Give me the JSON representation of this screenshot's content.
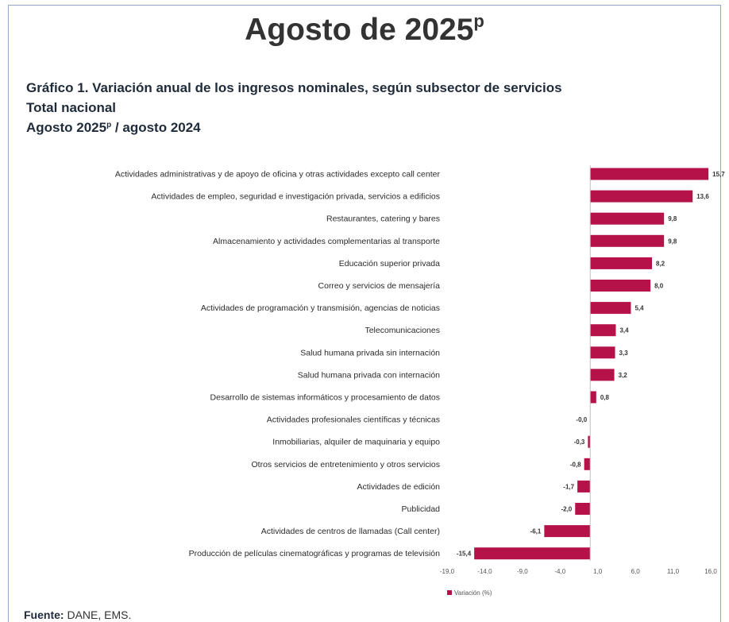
{
  "header": {
    "title": "Agosto de 2025",
    "title_sup": "p",
    "chart_title": "Gráfico 1. Variación anual de los ingresos nominales, según subsector de servicios",
    "scope": "Total nacional",
    "period_a": "Agosto 2025",
    "period_sup": "p",
    "period_b": " / agosto 2024"
  },
  "chart_data": {
    "type": "bar",
    "orientation": "horizontal",
    "categories": [
      "Actividades administrativas y de apoyo de oficina y otras actividades excepto call center",
      "Actividades de empleo, seguridad e investigación privada, servicios a edificios",
      "Restaurantes, catering y bares",
      "Almacenamiento y actividades complementarias al transporte",
      "Educación superior privada",
      "Correo y servicios de mensajería",
      "Actividades de programación y transmisión,  agencias de noticias",
      "Telecomunicaciones",
      "Salud humana privada sin internación",
      "Salud humana privada con internación",
      "Desarrollo de sistemas informáticos y procesamiento de datos",
      "Actividades profesionales científicas y técnicas",
      "Inmobiliarias, alquiler de maquinaria y equipo",
      "Otros servicios de entretenimiento y otros servicios",
      "Actividades de edición",
      "Publicidad",
      "Actividades de centros de llamadas (Call center)",
      "Producción de películas cinematográficas y programas de televisión"
    ],
    "values": [
      15.7,
      13.6,
      9.8,
      9.8,
      8.2,
      8.0,
      5.4,
      3.4,
      3.3,
      3.2,
      0.8,
      -0.0,
      -0.3,
      -0.8,
      -1.7,
      -2.0,
      -6.1,
      -15.4
    ],
    "value_labels": [
      "15,7",
      "13,6",
      "9,8",
      "9,8",
      "8,2",
      "8,0",
      "5,4",
      "3,4",
      "3,3",
      "3,2",
      "0,8",
      "-0,0",
      "-0,3",
      "-0,8",
      "-1,7",
      "-2,0",
      "-6,1",
      "-15,4"
    ],
    "xlim": [
      -19.0,
      16.0
    ],
    "x_ticks": [
      -19.0,
      -14.0,
      -9.0,
      -4.0,
      1.0,
      6.0,
      11.0,
      16.0
    ],
    "x_tick_labels": [
      "-19,0",
      "-14,0",
      "-9,0",
      "-4,0",
      "1,0",
      "6,0",
      "11,0",
      "16,0"
    ],
    "series_name": "Variación (%)",
    "legend_position": "bottom-center",
    "grid": false,
    "bar_color": "#b5124a"
  },
  "footer": {
    "source_label": "Fuente:",
    "source_text": " DANE, EMS."
  }
}
